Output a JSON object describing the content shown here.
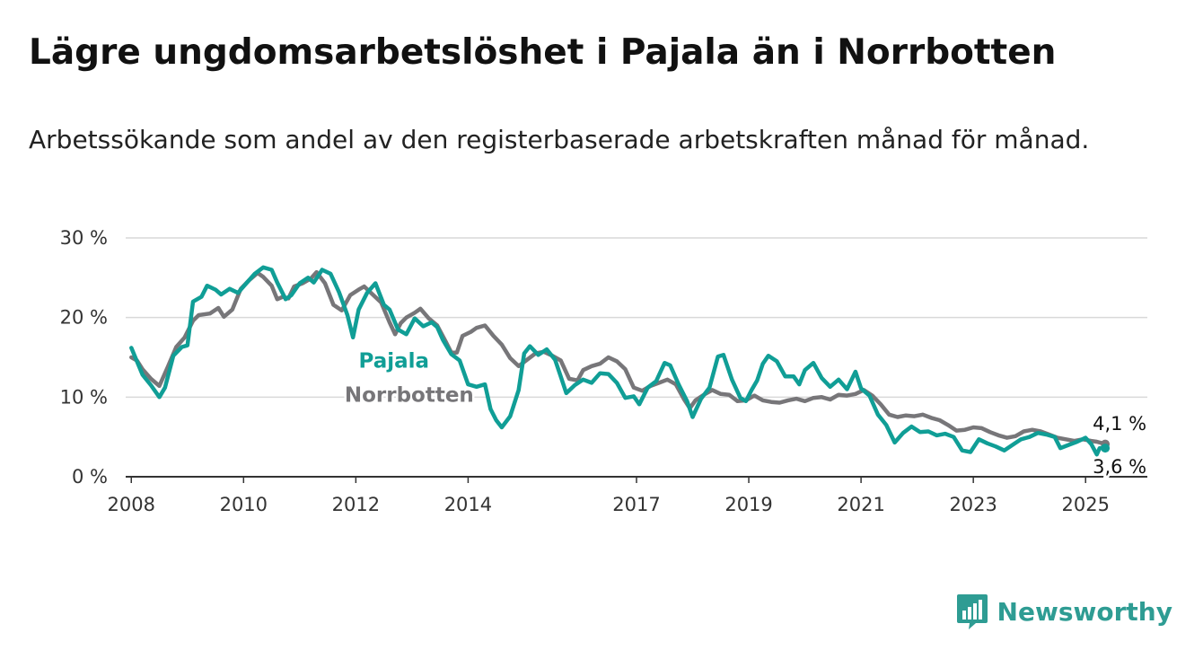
{
  "title": "Lägre ungdomsarbetslöshet i Pajala än i Norrbotten",
  "subtitle": "Arbetssökande som andel av den registerbaserade arbetskraften månad för månad.",
  "brand": {
    "name": "Newsworthy",
    "icon": "newsworthy-chart-bubble-icon",
    "color": "#2e9c93"
  },
  "chart_data": {
    "type": "line",
    "xlabel": "",
    "ylabel": "",
    "x_unit": "year",
    "xlim": [
      2007.9,
      2026.1
    ],
    "ylim": [
      0,
      30
    ],
    "yticks": [
      {
        "value": 0,
        "label": "0 %"
      },
      {
        "value": 10,
        "label": "10 %"
      },
      {
        "value": 20,
        "label": "20 %"
      },
      {
        "value": 30,
        "label": "30 %"
      }
    ],
    "xticks": [
      {
        "value": 2008,
        "label": "2008"
      },
      {
        "value": 2010,
        "label": "2010"
      },
      {
        "value": 2012,
        "label": "2012"
      },
      {
        "value": 2014,
        "label": "2014"
      },
      {
        "value": 2017,
        "label": "2017"
      },
      {
        "value": 2019,
        "label": "2019"
      },
      {
        "value": 2021,
        "label": "2021"
      },
      {
        "value": 2023,
        "label": "2023"
      },
      {
        "value": 2025,
        "label": "2025"
      }
    ],
    "grid": true,
    "legend": "none (direct labels)",
    "series": [
      {
        "name": "Norrbotten",
        "color": "#777679",
        "label_at": [
          2011.8,
          9.4
        ],
        "end_label": "4,1 %",
        "points": [
          [
            2008.0,
            15.0
          ],
          [
            2008.1,
            14.6
          ],
          [
            2008.2,
            13.5
          ],
          [
            2008.35,
            12.3
          ],
          [
            2008.5,
            11.4
          ],
          [
            2008.65,
            13.8
          ],
          [
            2008.8,
            16.3
          ],
          [
            2008.95,
            17.5
          ],
          [
            2009.1,
            19.6
          ],
          [
            2009.2,
            20.3
          ],
          [
            2009.4,
            20.5
          ],
          [
            2009.55,
            21.2
          ],
          [
            2009.65,
            20.1
          ],
          [
            2009.8,
            21.0
          ],
          [
            2009.95,
            23.6
          ],
          [
            2010.1,
            24.7
          ],
          [
            2010.25,
            25.6
          ],
          [
            2010.35,
            25.1
          ],
          [
            2010.5,
            24.0
          ],
          [
            2010.6,
            22.3
          ],
          [
            2010.7,
            22.6
          ],
          [
            2010.8,
            22.4
          ],
          [
            2010.9,
            23.9
          ],
          [
            2011.05,
            24.3
          ],
          [
            2011.2,
            24.9
          ],
          [
            2011.3,
            25.7
          ],
          [
            2011.45,
            24.3
          ],
          [
            2011.6,
            21.6
          ],
          [
            2011.75,
            20.9
          ],
          [
            2011.9,
            22.8
          ],
          [
            2012.05,
            23.5
          ],
          [
            2012.15,
            23.9
          ],
          [
            2012.3,
            22.9
          ],
          [
            2012.45,
            21.9
          ],
          [
            2012.6,
            19.4
          ],
          [
            2012.7,
            17.9
          ],
          [
            2012.8,
            19.3
          ],
          [
            2012.9,
            20.0
          ],
          [
            2013.05,
            20.6
          ],
          [
            2013.15,
            21.1
          ],
          [
            2013.3,
            19.9
          ],
          [
            2013.45,
            19.0
          ],
          [
            2013.6,
            17.0
          ],
          [
            2013.7,
            15.6
          ],
          [
            2013.8,
            15.6
          ],
          [
            2013.9,
            17.7
          ],
          [
            2014.05,
            18.2
          ],
          [
            2014.15,
            18.7
          ],
          [
            2014.3,
            19.0
          ],
          [
            2014.45,
            17.7
          ],
          [
            2014.6,
            16.6
          ],
          [
            2014.75,
            14.9
          ],
          [
            2014.9,
            13.9
          ],
          [
            2015.05,
            14.7
          ],
          [
            2015.2,
            15.5
          ],
          [
            2015.35,
            15.7
          ],
          [
            2015.5,
            15.2
          ],
          [
            2015.65,
            14.6
          ],
          [
            2015.8,
            12.3
          ],
          [
            2015.95,
            12.1
          ],
          [
            2016.05,
            13.4
          ],
          [
            2016.2,
            13.9
          ],
          [
            2016.35,
            14.2
          ],
          [
            2016.5,
            15.0
          ],
          [
            2016.65,
            14.5
          ],
          [
            2016.8,
            13.5
          ],
          [
            2016.95,
            11.2
          ],
          [
            2017.1,
            10.8
          ],
          [
            2017.25,
            11.4
          ],
          [
            2017.4,
            11.8
          ],
          [
            2017.55,
            12.2
          ],
          [
            2017.7,
            11.6
          ],
          [
            2017.85,
            9.7
          ],
          [
            2017.95,
            8.6
          ],
          [
            2018.05,
            9.6
          ],
          [
            2018.2,
            10.3
          ],
          [
            2018.35,
            10.9
          ],
          [
            2018.5,
            10.4
          ],
          [
            2018.65,
            10.3
          ],
          [
            2018.8,
            9.5
          ],
          [
            2018.95,
            9.6
          ],
          [
            2019.1,
            10.2
          ],
          [
            2019.25,
            9.6
          ],
          [
            2019.4,
            9.4
          ],
          [
            2019.55,
            9.3
          ],
          [
            2019.7,
            9.6
          ],
          [
            2019.85,
            9.8
          ],
          [
            2020.0,
            9.5
          ],
          [
            2020.15,
            9.9
          ],
          [
            2020.3,
            10.0
          ],
          [
            2020.45,
            9.7
          ],
          [
            2020.6,
            10.3
          ],
          [
            2020.75,
            10.2
          ],
          [
            2020.9,
            10.4
          ],
          [
            2021.05,
            10.9
          ],
          [
            2021.2,
            10.2
          ],
          [
            2021.35,
            9.1
          ],
          [
            2021.5,
            7.8
          ],
          [
            2021.65,
            7.5
          ],
          [
            2021.8,
            7.7
          ],
          [
            2021.95,
            7.6
          ],
          [
            2022.1,
            7.8
          ],
          [
            2022.25,
            7.4
          ],
          [
            2022.4,
            7.1
          ],
          [
            2022.55,
            6.5
          ],
          [
            2022.7,
            5.8
          ],
          [
            2022.85,
            5.9
          ],
          [
            2023.0,
            6.2
          ],
          [
            2023.15,
            6.1
          ],
          [
            2023.3,
            5.6
          ],
          [
            2023.45,
            5.2
          ],
          [
            2023.6,
            4.9
          ],
          [
            2023.75,
            5.1
          ],
          [
            2023.9,
            5.7
          ],
          [
            2024.05,
            5.9
          ],
          [
            2024.2,
            5.7
          ],
          [
            2024.35,
            5.3
          ],
          [
            2024.5,
            4.9
          ],
          [
            2024.65,
            4.7
          ],
          [
            2024.8,
            4.5
          ],
          [
            2024.95,
            4.7
          ],
          [
            2025.1,
            4.5
          ],
          [
            2025.2,
            4.4
          ],
          [
            2025.35,
            4.1
          ]
        ]
      },
      {
        "name": "Pajala",
        "color": "#109e96",
        "label_at": [
          2012.05,
          13.7
        ],
        "end_label": "3,6 %",
        "points": [
          [
            2008.0,
            16.2
          ],
          [
            2008.1,
            14.5
          ],
          [
            2008.2,
            12.8
          ],
          [
            2008.35,
            11.5
          ],
          [
            2008.5,
            10.0
          ],
          [
            2008.6,
            11.2
          ],
          [
            2008.75,
            15.2
          ],
          [
            2008.9,
            16.3
          ],
          [
            2009.0,
            16.5
          ],
          [
            2009.1,
            22.0
          ],
          [
            2009.25,
            22.6
          ],
          [
            2009.35,
            24.0
          ],
          [
            2009.5,
            23.5
          ],
          [
            2009.6,
            22.9
          ],
          [
            2009.75,
            23.6
          ],
          [
            2009.9,
            23.1
          ],
          [
            2010.05,
            24.3
          ],
          [
            2010.2,
            25.5
          ],
          [
            2010.35,
            26.3
          ],
          [
            2010.5,
            26.0
          ],
          [
            2010.6,
            24.4
          ],
          [
            2010.75,
            22.3
          ],
          [
            2010.85,
            22.8
          ],
          [
            2011.0,
            24.3
          ],
          [
            2011.15,
            25.0
          ],
          [
            2011.25,
            24.4
          ],
          [
            2011.4,
            26.0
          ],
          [
            2011.55,
            25.5
          ],
          [
            2011.7,
            23.2
          ],
          [
            2011.85,
            20.3
          ],
          [
            2011.95,
            17.5
          ],
          [
            2012.05,
            21.0
          ],
          [
            2012.2,
            23.1
          ],
          [
            2012.35,
            24.3
          ],
          [
            2012.5,
            21.6
          ],
          [
            2012.6,
            21.0
          ],
          [
            2012.75,
            18.5
          ],
          [
            2012.9,
            17.9
          ],
          [
            2013.05,
            19.9
          ],
          [
            2013.2,
            18.9
          ],
          [
            2013.35,
            19.4
          ],
          [
            2013.45,
            18.8
          ],
          [
            2013.55,
            17.2
          ],
          [
            2013.7,
            15.4
          ],
          [
            2013.85,
            14.6
          ],
          [
            2014.0,
            11.6
          ],
          [
            2014.15,
            11.3
          ],
          [
            2014.3,
            11.6
          ],
          [
            2014.4,
            8.5
          ],
          [
            2014.5,
            7.1
          ],
          [
            2014.6,
            6.2
          ],
          [
            2014.75,
            7.6
          ],
          [
            2014.9,
            10.9
          ],
          [
            2015.0,
            15.5
          ],
          [
            2015.1,
            16.4
          ],
          [
            2015.25,
            15.3
          ],
          [
            2015.4,
            16.0
          ],
          [
            2015.55,
            14.7
          ],
          [
            2015.65,
            12.6
          ],
          [
            2015.75,
            10.5
          ],
          [
            2015.9,
            11.5
          ],
          [
            2016.05,
            12.2
          ],
          [
            2016.2,
            11.8
          ],
          [
            2016.35,
            13.0
          ],
          [
            2016.5,
            12.9
          ],
          [
            2016.65,
            11.8
          ],
          [
            2016.8,
            9.9
          ],
          [
            2016.95,
            10.1
          ],
          [
            2017.05,
            9.1
          ],
          [
            2017.2,
            11.2
          ],
          [
            2017.35,
            12.0
          ],
          [
            2017.5,
            14.3
          ],
          [
            2017.6,
            14.0
          ],
          [
            2017.75,
            11.6
          ],
          [
            2017.9,
            9.5
          ],
          [
            2018.0,
            7.5
          ],
          [
            2018.15,
            9.8
          ],
          [
            2018.3,
            11.2
          ],
          [
            2018.45,
            15.1
          ],
          [
            2018.55,
            15.3
          ],
          [
            2018.7,
            12.2
          ],
          [
            2018.85,
            9.9
          ],
          [
            2018.95,
            9.5
          ],
          [
            2019.05,
            10.9
          ],
          [
            2019.15,
            12.1
          ],
          [
            2019.25,
            14.2
          ],
          [
            2019.35,
            15.2
          ],
          [
            2019.5,
            14.5
          ],
          [
            2019.65,
            12.6
          ],
          [
            2019.8,
            12.6
          ],
          [
            2019.9,
            11.6
          ],
          [
            2020.0,
            13.4
          ],
          [
            2020.15,
            14.3
          ],
          [
            2020.3,
            12.4
          ],
          [
            2020.45,
            11.3
          ],
          [
            2020.6,
            12.2
          ],
          [
            2020.75,
            11.0
          ],
          [
            2020.9,
            13.2
          ],
          [
            2021.0,
            11.1
          ],
          [
            2021.15,
            10.2
          ],
          [
            2021.3,
            7.8
          ],
          [
            2021.45,
            6.5
          ],
          [
            2021.6,
            4.3
          ],
          [
            2021.75,
            5.5
          ],
          [
            2021.9,
            6.3
          ],
          [
            2022.05,
            5.6
          ],
          [
            2022.2,
            5.7
          ],
          [
            2022.35,
            5.2
          ],
          [
            2022.5,
            5.4
          ],
          [
            2022.65,
            5.0
          ],
          [
            2022.8,
            3.3
          ],
          [
            2022.95,
            3.1
          ],
          [
            2023.1,
            4.7
          ],
          [
            2023.25,
            4.2
          ],
          [
            2023.4,
            3.8
          ],
          [
            2023.55,
            3.3
          ],
          [
            2023.7,
            4.0
          ],
          [
            2023.85,
            4.7
          ],
          [
            2024.0,
            5.0
          ],
          [
            2024.15,
            5.5
          ],
          [
            2024.3,
            5.3
          ],
          [
            2024.45,
            5.0
          ],
          [
            2024.55,
            3.6
          ],
          [
            2024.7,
            4.0
          ],
          [
            2024.85,
            4.4
          ],
          [
            2025.0,
            4.9
          ],
          [
            2025.1,
            4.1
          ],
          [
            2025.2,
            2.8
          ],
          [
            2025.25,
            3.6
          ],
          [
            2025.35,
            3.6
          ]
        ]
      }
    ]
  }
}
